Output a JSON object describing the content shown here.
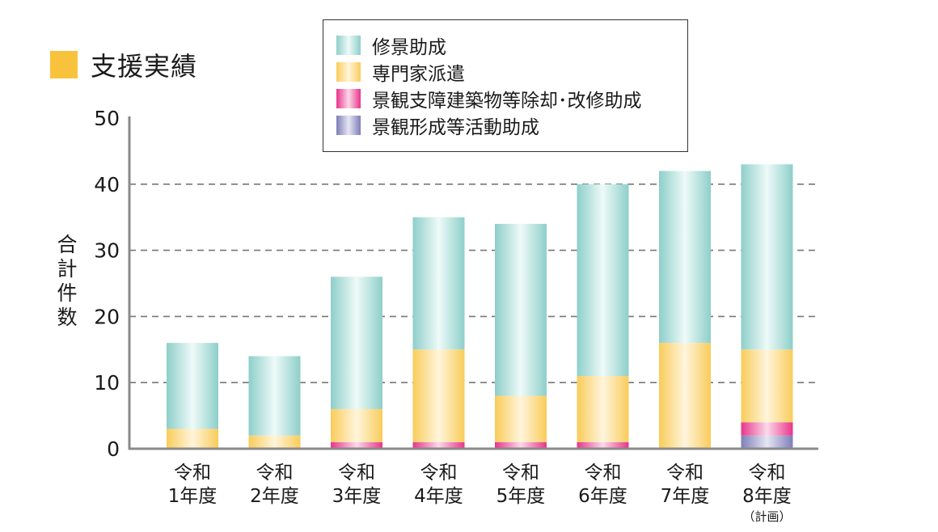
{
  "chart_data": {
    "type": "bar",
    "stacked": true,
    "title": "支援実績",
    "ylabel": "合計件数",
    "xlabel": "",
    "ylim": [
      0,
      50
    ],
    "yticks": [
      0,
      10,
      20,
      30,
      40,
      50
    ],
    "grid": "horizontal dashed",
    "legend": "top-center",
    "categories": [
      {
        "line1": "令和",
        "line2": "1年度",
        "note": ""
      },
      {
        "line1": "令和",
        "line2": "2年度",
        "note": ""
      },
      {
        "line1": "令和",
        "line2": "3年度",
        "note": ""
      },
      {
        "line1": "令和",
        "line2": "4年度",
        "note": ""
      },
      {
        "line1": "令和",
        "line2": "5年度",
        "note": ""
      },
      {
        "line1": "令和",
        "line2": "6年度",
        "note": ""
      },
      {
        "line1": "令和",
        "line2": "7年度",
        "note": ""
      },
      {
        "line1": "令和",
        "line2": "8年度",
        "note": "（計画）"
      }
    ],
    "series": [
      {
        "name": "景観形成等活動助成",
        "color_edge": "#7e7eb8",
        "color_mid": "#e6e6f4",
        "values": [
          0,
          0,
          0,
          0,
          0,
          0,
          0,
          2
        ]
      },
      {
        "name": "景観支障建築物等除却･改修助成",
        "color_edge": "#e8358a",
        "color_mid": "#fbd9e9",
        "values": [
          0,
          0,
          1,
          1,
          1,
          1,
          0,
          2
        ]
      },
      {
        "name": "専門家派遣",
        "color_edge": "#f9cc5a",
        "color_mid": "#fff5dc",
        "values": [
          3,
          2,
          5,
          14,
          7,
          10,
          16,
          11
        ]
      },
      {
        "name": "修景助成",
        "color_edge": "#8ecfca",
        "color_mid": "#eefaf8",
        "values": [
          13,
          12,
          20,
          20,
          26,
          29,
          26,
          28
        ]
      }
    ],
    "legend_order": [
      3,
      2,
      1,
      0
    ]
  }
}
